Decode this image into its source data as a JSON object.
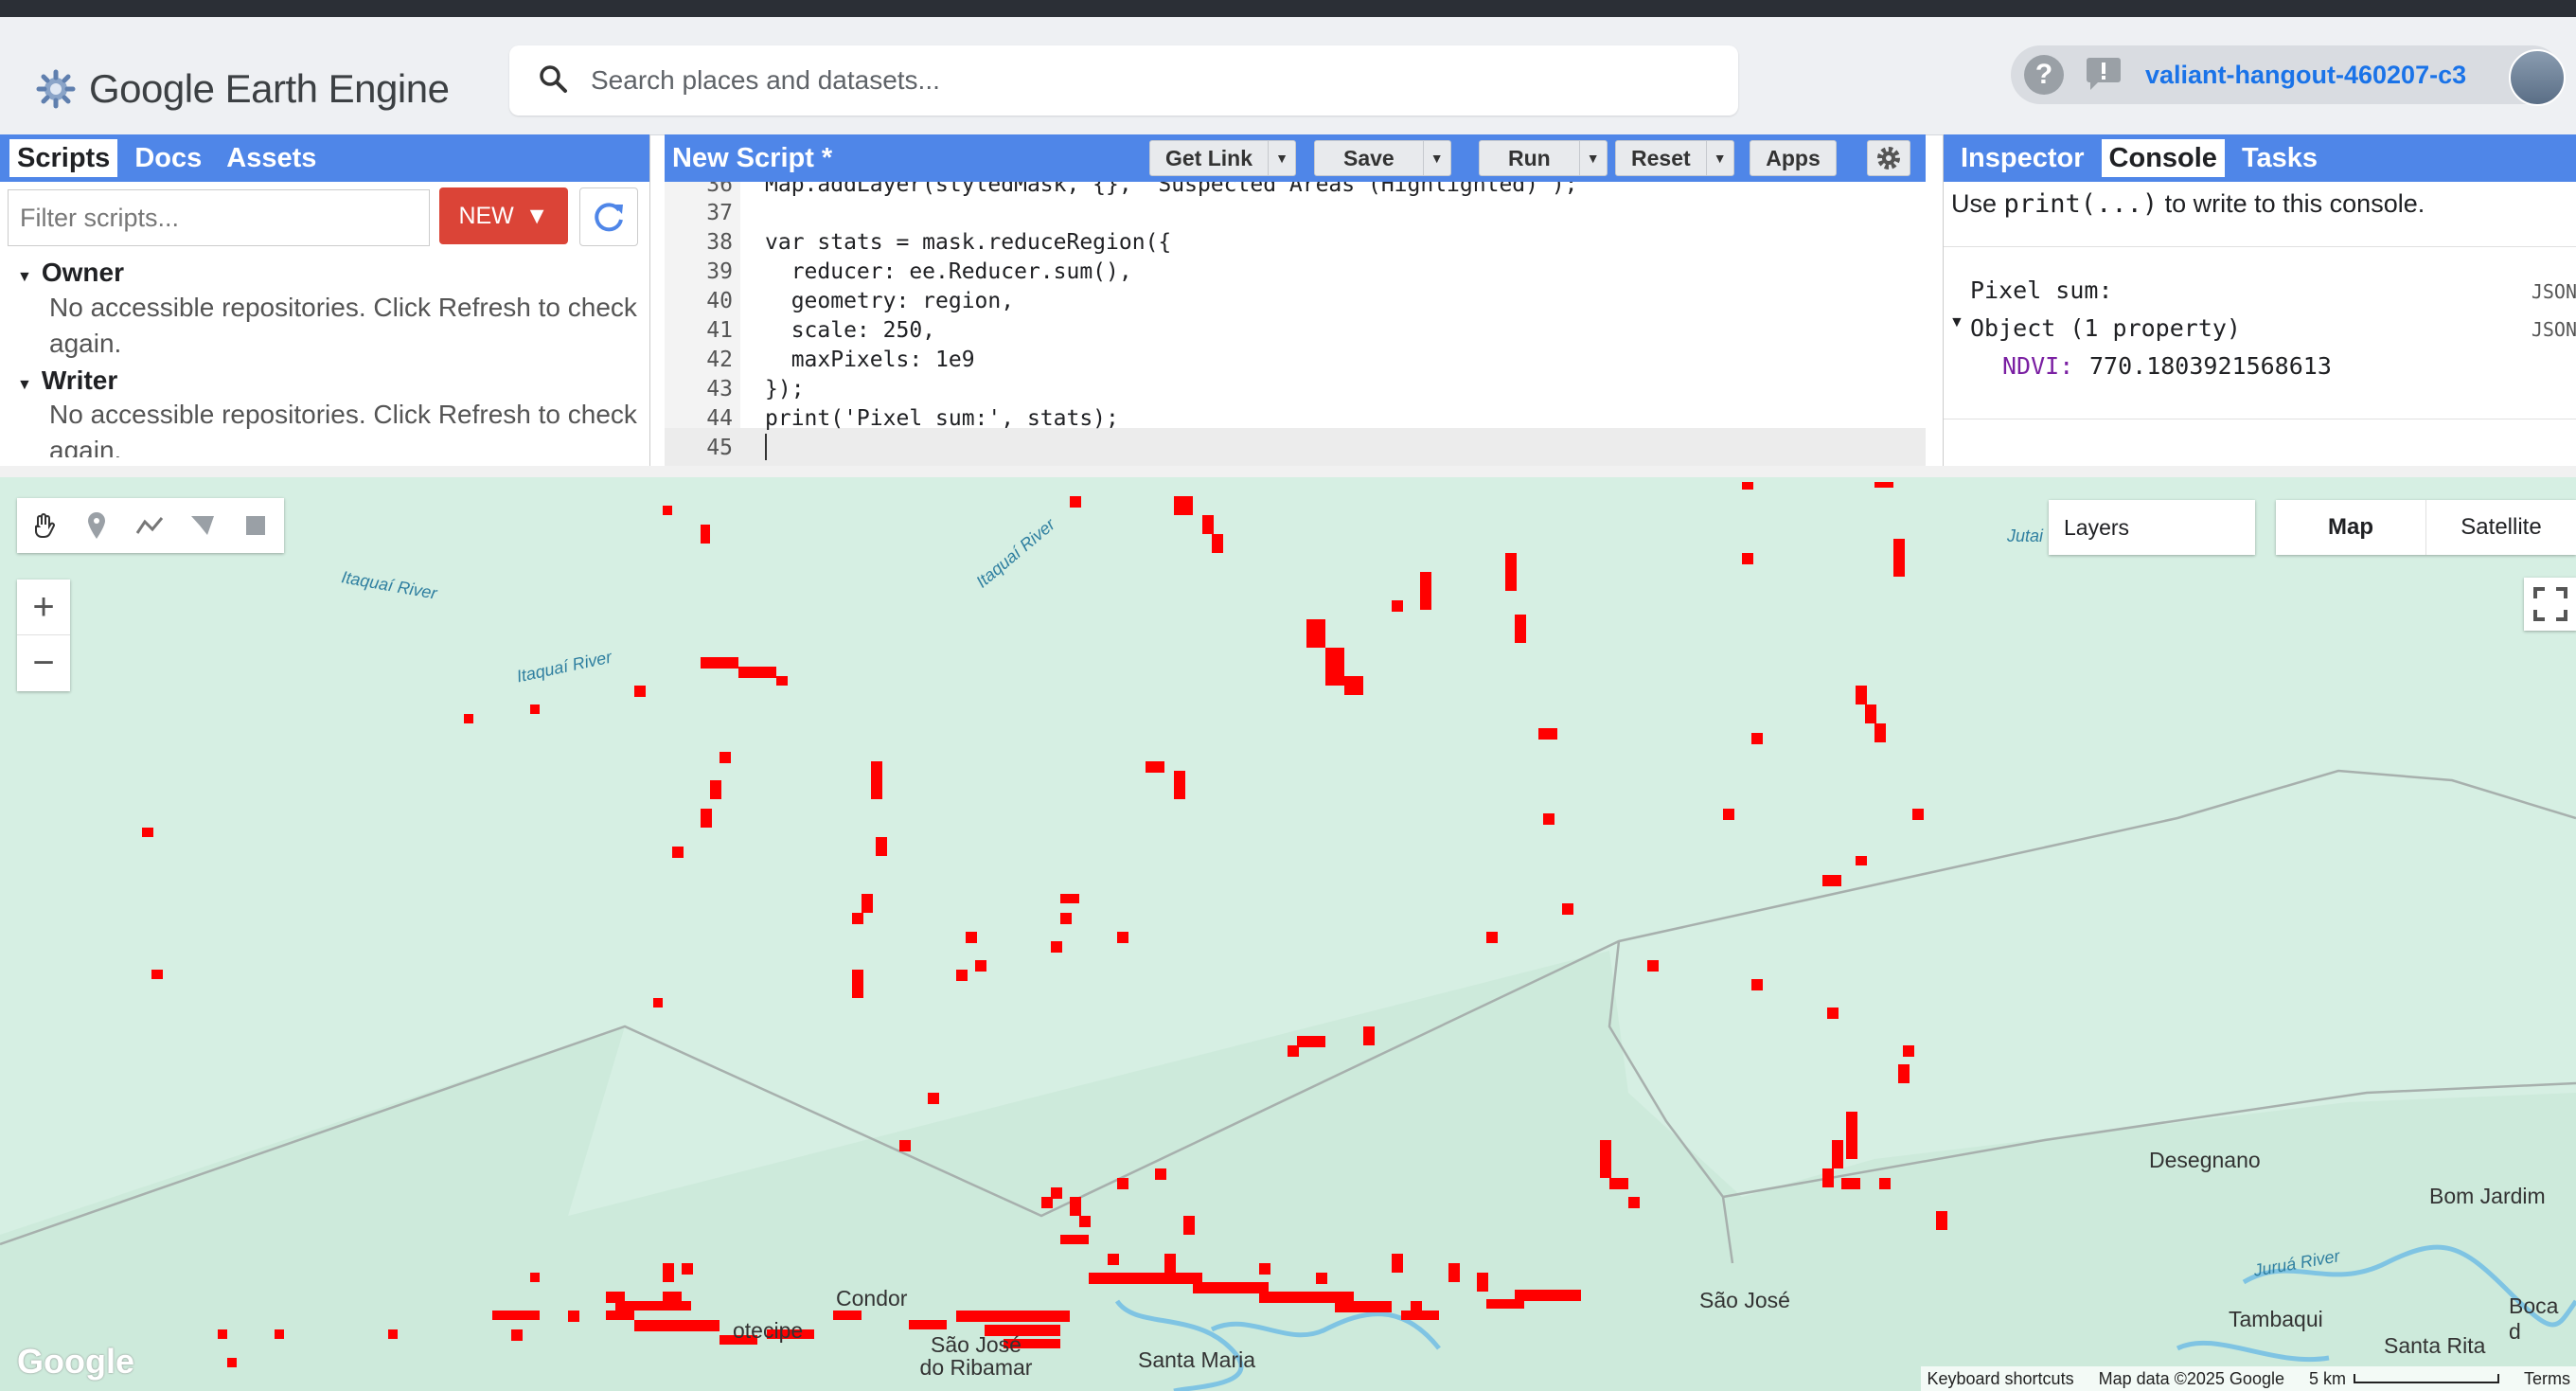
{
  "app": {
    "title": "Google Earth Engine"
  },
  "search": {
    "placeholder": "Search places and datasets..."
  },
  "account": {
    "project": "valiant-hangout-460207-c3"
  },
  "left_panel": {
    "tabs": [
      "Scripts",
      "Docs",
      "Assets"
    ],
    "filter_placeholder": "Filter scripts...",
    "new_button": "NEW",
    "tree": [
      {
        "label": "Owner",
        "message": "No accessible repositories. Click Refresh to check again."
      },
      {
        "label": "Writer",
        "message": "No accessible repositories. Click Refresh to check again."
      }
    ]
  },
  "editor": {
    "title": "New Script *",
    "buttons": {
      "get_link": "Get Link",
      "save": "Save",
      "run": "Run",
      "reset": "Reset",
      "apps": "Apps"
    },
    "lines": [
      {
        "n": "36",
        "text": "Map.addLayer(styledMask, {}, 'Suspected Areas (Highlighted)');"
      },
      {
        "n": "37",
        "text": ""
      },
      {
        "n": "38",
        "text": "var stats = mask.reduceRegion({"
      },
      {
        "n": "39",
        "text": "  reducer: ee.Reducer.sum(),"
      },
      {
        "n": "40",
        "text": "  geometry: region,"
      },
      {
        "n": "41",
        "text": "  scale: 250,"
      },
      {
        "n": "42",
        "text": "  maxPixels: 1e9"
      },
      {
        "n": "43",
        "text": "});"
      },
      {
        "n": "44",
        "text": "print('Pixel sum:', stats);"
      },
      {
        "n": "45",
        "text": ""
      }
    ]
  },
  "right_panel": {
    "tabs": [
      "Inspector",
      "Console",
      "Tasks"
    ],
    "hint_prefix": "Use ",
    "hint_code": "print(...)",
    "hint_suffix": " to write to this console.",
    "output": {
      "label": "Pixel sum:",
      "object": "Object (1 property)",
      "key": "NDVI:",
      "value": "770.1803921568613",
      "json": "JSON"
    }
  },
  "map": {
    "layers_label": "Layers",
    "map_types": [
      "Map",
      "Satellite"
    ],
    "places": [
      "Condor",
      "São José do Ribamar",
      "Santa Maria",
      "São José",
      "Desegnano",
      "Bom Jardim",
      "Tambaqui",
      "Santa Rita",
      "Boca d",
      "Jutai"
    ],
    "place_partial": "otecipe",
    "rivers": [
      "Itaquaí River",
      "Itaquaí River",
      "Itaquaí River",
      "Juruá River"
    ],
    "footer": {
      "shortcuts": "Keyboard shortcuts",
      "data": "Map data ©2025 Google",
      "scale": "5 km",
      "terms": "Terms"
    },
    "watermark": "Google",
    "colors": {
      "highlight": "#ff0000",
      "land": "#d6efe3",
      "water": "#7fc4e3",
      "boundary": "#9aa0a6"
    }
  }
}
